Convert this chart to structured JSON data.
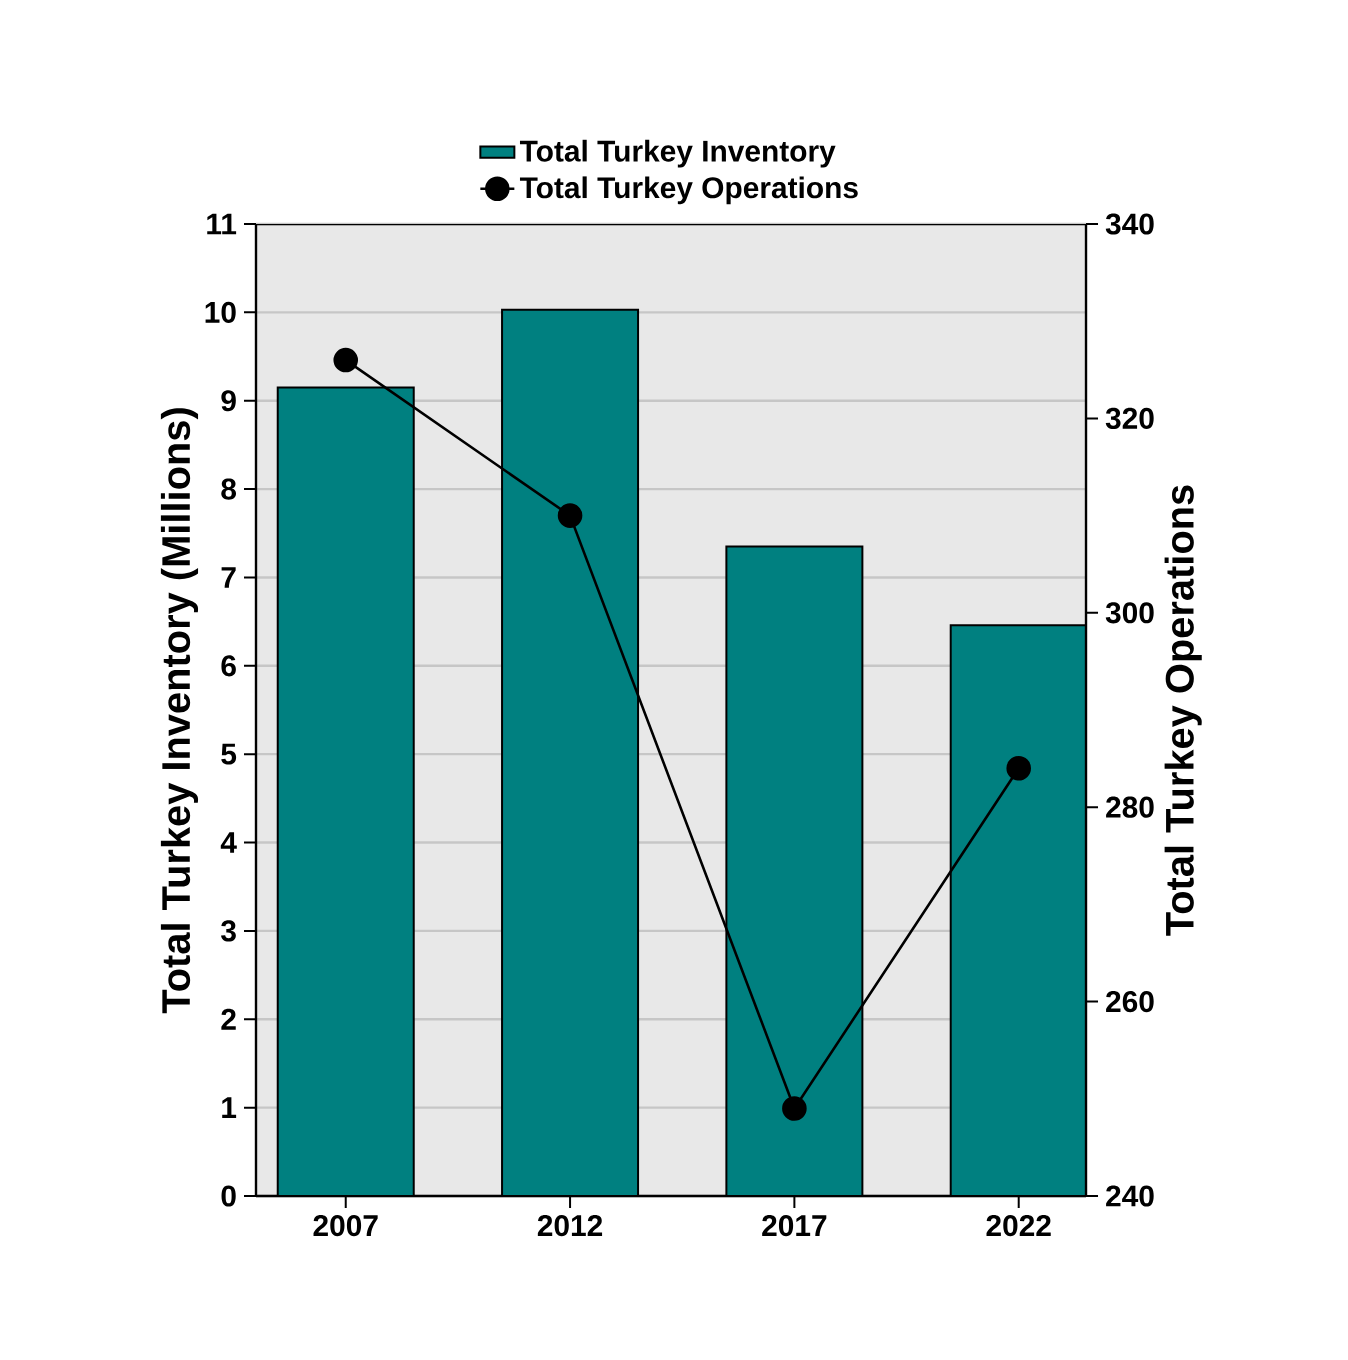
{
  "chart_data": {
    "type": "bar",
    "categories": [
      "2007",
      "2012",
      "2017",
      "2022"
    ],
    "ylabel": "Total Turkey Inventory (Millions)",
    "y2label": "Total Turkey Operations",
    "ylim": [
      0,
      11
    ],
    "yticks": [
      0,
      1,
      2,
      3,
      4,
      5,
      6,
      7,
      8,
      9,
      10,
      11
    ],
    "y2lim": [
      240,
      340
    ],
    "y2ticks": [
      240,
      260,
      280,
      300,
      320,
      340
    ],
    "grid": "y",
    "legend": "top",
    "marker": "circle",
    "series": [
      {
        "name": "Total Turkey Inventory",
        "color": "#008080",
        "values": [
          9.15,
          10.03,
          7.35,
          6.46
        ]
      },
      {
        "name": "Total Turkey Operations",
        "type": "line",
        "axis": "y2",
        "color": "#000000",
        "values": [
          326,
          310,
          249,
          284
        ]
      }
    ]
  }
}
